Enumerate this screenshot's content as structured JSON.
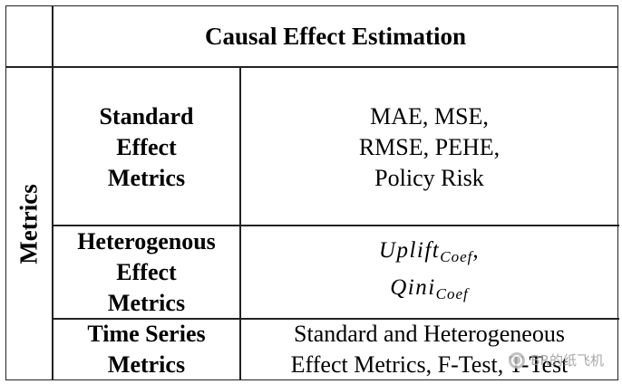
{
  "table": {
    "header": "Causal Effect Estimation",
    "group_label": "Metrics",
    "rows": [
      {
        "category": [
          "Standard",
          "Effect",
          "Metrics"
        ],
        "metrics": [
          "MAE, MSE,",
          "RMSE, PEHE,",
          "Policy Risk"
        ]
      },
      {
        "category": [
          "Heterogenous",
          "Effect",
          "Metrics"
        ],
        "metrics_math": [
          {
            "base": "Uplift",
            "sub": "Coef",
            "suffix": ","
          },
          {
            "base": "Qini",
            "sub": "Coef",
            "suffix": ""
          }
        ]
      },
      {
        "category": [
          "Time Series",
          "Metrics"
        ],
        "metrics": [
          "Standard and Heterogeneous",
          "Effect Metrics, F-Test, T-Test"
        ]
      }
    ]
  },
  "watermark": {
    "text": "BR的纸飞机",
    "icon": "wechat-logo-icon"
  }
}
